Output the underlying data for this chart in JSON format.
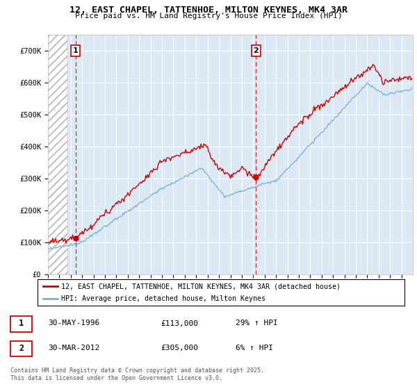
{
  "title_line1": "12, EAST CHAPEL, TATTENHOE, MILTON KEYNES, MK4 3AR",
  "title_line2": "Price paid vs. HM Land Registry's House Price Index (HPI)",
  "legend_line1": "12, EAST CHAPEL, TATTENHOE, MILTON KEYNES, MK4 3AR (detached house)",
  "legend_line2": "HPI: Average price, detached house, Milton Keynes",
  "transaction1_label": "1",
  "transaction1_date": "30-MAY-1996",
  "transaction1_price": "£113,000",
  "transaction1_hpi": "29% ↑ HPI",
  "transaction1_year": 1996.42,
  "transaction1_value": 113000,
  "transaction2_label": "2",
  "transaction2_date": "30-MAR-2012",
  "transaction2_price": "£305,000",
  "transaction2_hpi": "6% ↑ HPI",
  "transaction2_year": 2012.25,
  "transaction2_value": 305000,
  "footer": "Contains HM Land Registry data © Crown copyright and database right 2025.\nThis data is licensed under the Open Government Licence v3.0.",
  "price_color": "#cc0000",
  "hpi_color": "#7ab0d4",
  "ylim_max": 750000,
  "xmin": 1994,
  "xmax": 2026
}
